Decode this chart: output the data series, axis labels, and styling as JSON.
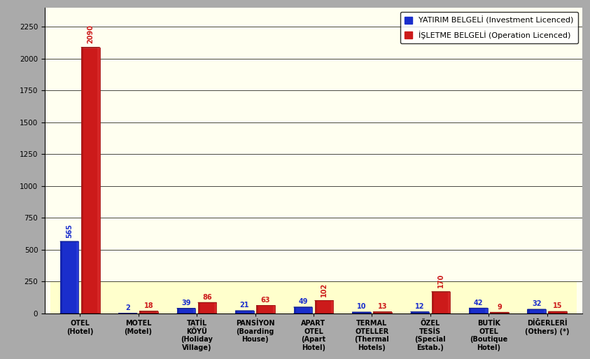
{
  "categories": [
    "OTEL\n(Hotel)",
    "MOTEL\n(Motel)",
    "TATİL\nKÖYÜ\n(Holiday\nVillage)",
    "PANSİYON\n(Boarding\nHouse)",
    "APART\nOTEL\n(Apart\nHotel)",
    "TERMAL\nOTELLER\n(Thermal\nHotels)",
    "ÖZEL\nTESİS\n(Special\nEstab.)",
    "BUTİK\nOTEL\n(Boutique\nHotel)",
    "DİĞERLERİ\n(Others) (*)"
  ],
  "investment": [
    565,
    2,
    39,
    21,
    49,
    10,
    12,
    42,
    32
  ],
  "operation": [
    2090,
    18,
    86,
    63,
    102,
    13,
    170,
    9,
    15
  ],
  "bar_width": 0.32,
  "investment_color": "#1a2ecc",
  "investment_color_dark": "#0a1a99",
  "investment_color_light": "#4455ee",
  "operation_color": "#cc1a1a",
  "operation_color_dark": "#991010",
  "operation_color_light": "#ee4444",
  "background_color": "#fffff0",
  "floor_color": "#ffffcc",
  "fig_bg_color": "#aaaaaa",
  "wall_color": "#fffff0",
  "ylim": [
    0,
    2400
  ],
  "yticks": [
    0,
    250,
    500,
    750,
    1000,
    1250,
    1500,
    1750,
    2000,
    2250
  ],
  "legend_invest": "YATIRIM BELGELİ (Investment Licenced)",
  "legend_op": "İŞLETME BELGELİ (Operation Licenced)",
  "label_fontsize": 7,
  "tick_fontsize": 7.5,
  "legend_fontsize": 8,
  "xtick_fontsize": 7
}
